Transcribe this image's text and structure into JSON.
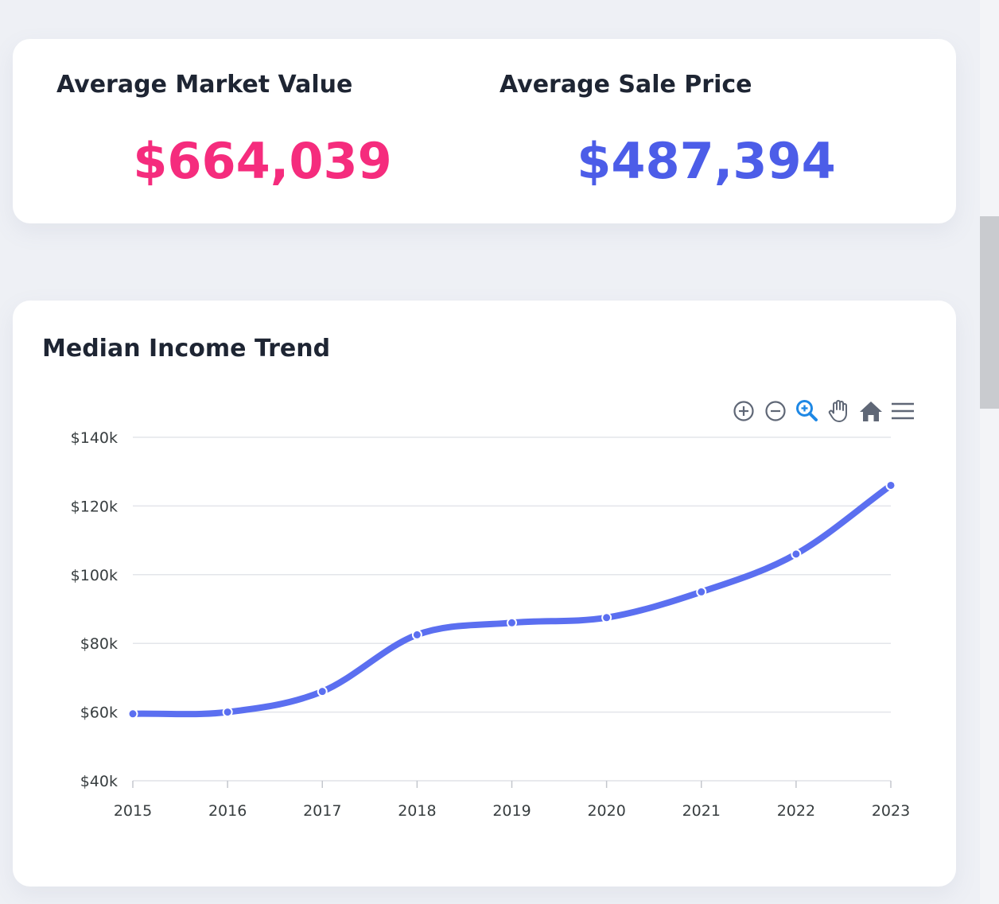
{
  "stats": {
    "market_value": {
      "label": "Average Market Value",
      "value": "$664,039",
      "color": "#f52c7d"
    },
    "sale_price": {
      "label": "Average Sale Price",
      "value": "$487,394",
      "color": "#4c5de8"
    }
  },
  "chart_title": "Median Income Trend",
  "toolbar": {
    "tools": [
      {
        "icon": "zoom-in-icon"
      },
      {
        "icon": "zoom-out-icon"
      },
      {
        "icon": "selection-zoom-icon",
        "active": true
      },
      {
        "icon": "pan-hand-icon"
      },
      {
        "icon": "reset-home-icon"
      },
      {
        "icon": "menu-icon"
      }
    ]
  },
  "chart_data": {
    "type": "line",
    "title": "Median Income Trend",
    "x": [
      "2015",
      "2016",
      "2017",
      "2018",
      "2019",
      "2020",
      "2021",
      "2022",
      "2023"
    ],
    "series": [
      {
        "values": [
          59500,
          60000,
          66000,
          82500,
          86000,
          87500,
          95000,
          106000,
          126000
        ],
        "color": "#5b6ff0"
      }
    ],
    "ylim": [
      40000,
      140000
    ],
    "yticks": [
      {
        "value": 140000,
        "label": "$140k"
      },
      {
        "value": 120000,
        "label": "$120k"
      },
      {
        "value": 100000,
        "label": "$100k"
      },
      {
        "value": 80000,
        "label": "$80k"
      },
      {
        "value": 60000,
        "label": "$60k"
      },
      {
        "value": 40000,
        "label": "$40k"
      }
    ],
    "xlabel": "",
    "ylabel": "",
    "grid": true,
    "curve": "smooth"
  }
}
